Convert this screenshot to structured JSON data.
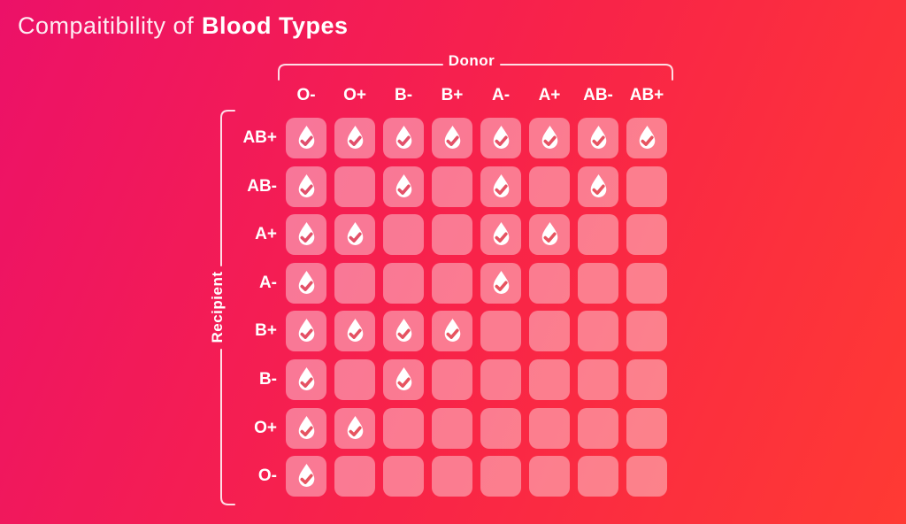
{
  "title": {
    "prefix": "Compaitibility of",
    "emphasis": "Blood Types"
  },
  "matrix": {
    "donor_label": "Donor",
    "recipient_label": "Recipient"
  },
  "chart_data": {
    "type": "heatmap",
    "title": "Compaitibility of Blood Types",
    "x_axis_label": "Donor",
    "y_axis_label": "Recipient",
    "columns": [
      "O-",
      "O+",
      "B-",
      "B+",
      "A-",
      "A+",
      "AB-",
      "AB+"
    ],
    "rows": [
      "AB+",
      "AB-",
      "A+",
      "A-",
      "B+",
      "B-",
      "O+",
      "O-"
    ],
    "values": [
      [
        1,
        1,
        1,
        1,
        1,
        1,
        1,
        1
      ],
      [
        1,
        0,
        1,
        0,
        1,
        0,
        1,
        0
      ],
      [
        1,
        1,
        0,
        0,
        1,
        1,
        0,
        0
      ],
      [
        1,
        0,
        0,
        0,
        1,
        0,
        0,
        0
      ],
      [
        1,
        1,
        1,
        1,
        0,
        0,
        0,
        0
      ],
      [
        1,
        0,
        1,
        0,
        0,
        0,
        0,
        0
      ],
      [
        1,
        1,
        0,
        0,
        0,
        0,
        0,
        0
      ],
      [
        1,
        0,
        0,
        0,
        0,
        0,
        0,
        0
      ]
    ],
    "value_meaning": "1 = compatible (blood-drop with checkmark shown), 0 = not compatible (empty cell)"
  },
  "icons": {
    "compatible_cell": "blood-drop-check-icon"
  },
  "colors": {
    "bg_gradient_start": "#ec1168",
    "bg_gradient_mid": "#f82349",
    "bg_gradient_end": "#ff3a33",
    "cell_overlay": "rgba(255,255,255,0.40)",
    "drop_fill": "#ffffff",
    "check_topleft": "#e04e6e",
    "check_bottomright": "#ee5a52",
    "bracket_line": "rgba(255,255,255,0.85)",
    "text": "#ffffff"
  }
}
